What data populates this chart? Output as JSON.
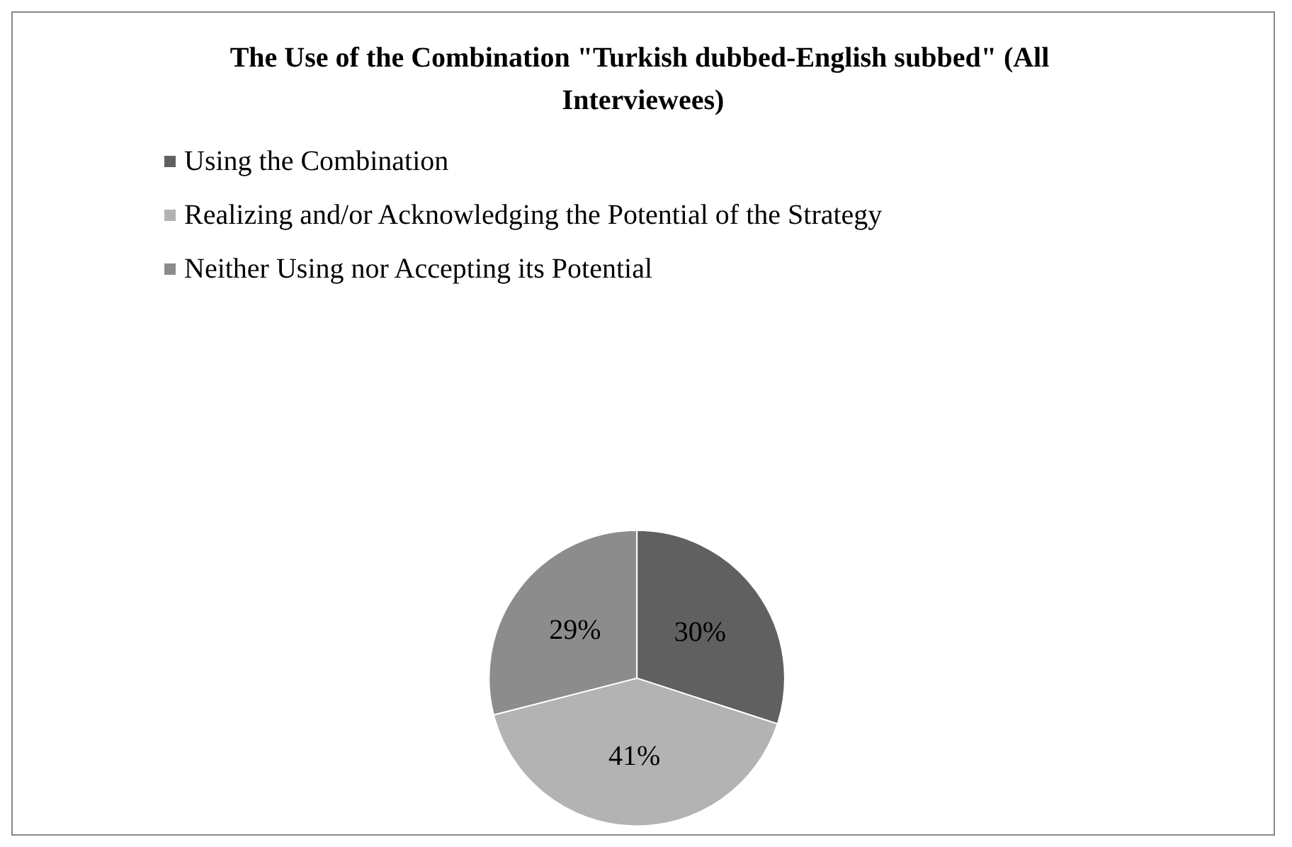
{
  "chart_data": {
    "type": "pie",
    "title": "The Use of the Combination \"Turkish dubbed-English subbed\" (All Interviewees)",
    "categories": [
      "Using the Combination",
      "Realizing and/or Acknowledging the Potential of the Strategy",
      "Neither Using nor Accepting its Potential"
    ],
    "values": [
      30,
      41,
      29
    ],
    "colors": [
      "#606060",
      "#b3b3b3",
      "#8c8c8c"
    ],
    "value_labels": [
      "30%",
      "41%",
      "29%"
    ],
    "legend": "top left"
  }
}
